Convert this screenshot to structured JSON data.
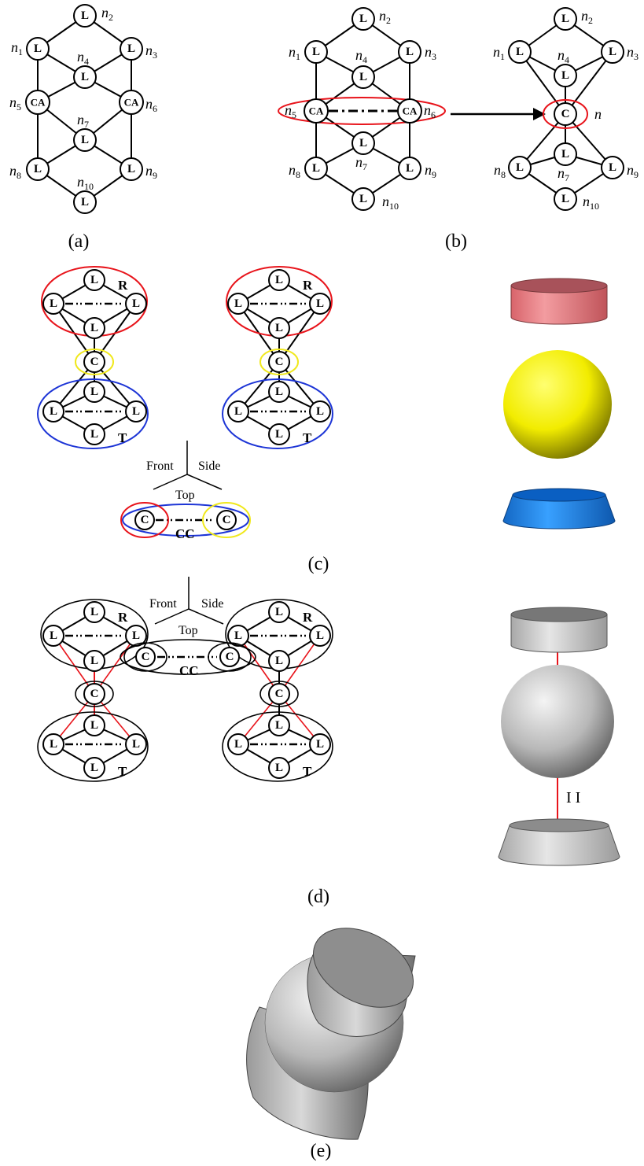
{
  "node_labels": {
    "L": "L",
    "CA": "CA",
    "C": "C"
  },
  "node_ids": {
    "n": "n",
    "s1": "1",
    "s2": "2",
    "s3": "3",
    "s4": "4",
    "s5": "5",
    "s6": "6",
    "s7": "7",
    "s8": "8",
    "s9": "9",
    "s10": "10"
  },
  "merged_label": "n",
  "group_tags": {
    "R": "R",
    "T": "T",
    "CC": "CC"
  },
  "axes": {
    "front": "Front",
    "side": "Side",
    "top": "Top"
  },
  "joint_mark": "I I",
  "captions": {
    "a": "(a)",
    "b": "(b)",
    "c": "(c)",
    "d": "(d)",
    "e": "(e)"
  },
  "colors": {
    "red": "#e8141b",
    "yellow": "#f0e81c",
    "blue": "#1d35d6",
    "cyl_pink": "#e87f84",
    "cone_blue": "#1f7fe0",
    "sphere_yellow": "#f2ec00"
  }
}
